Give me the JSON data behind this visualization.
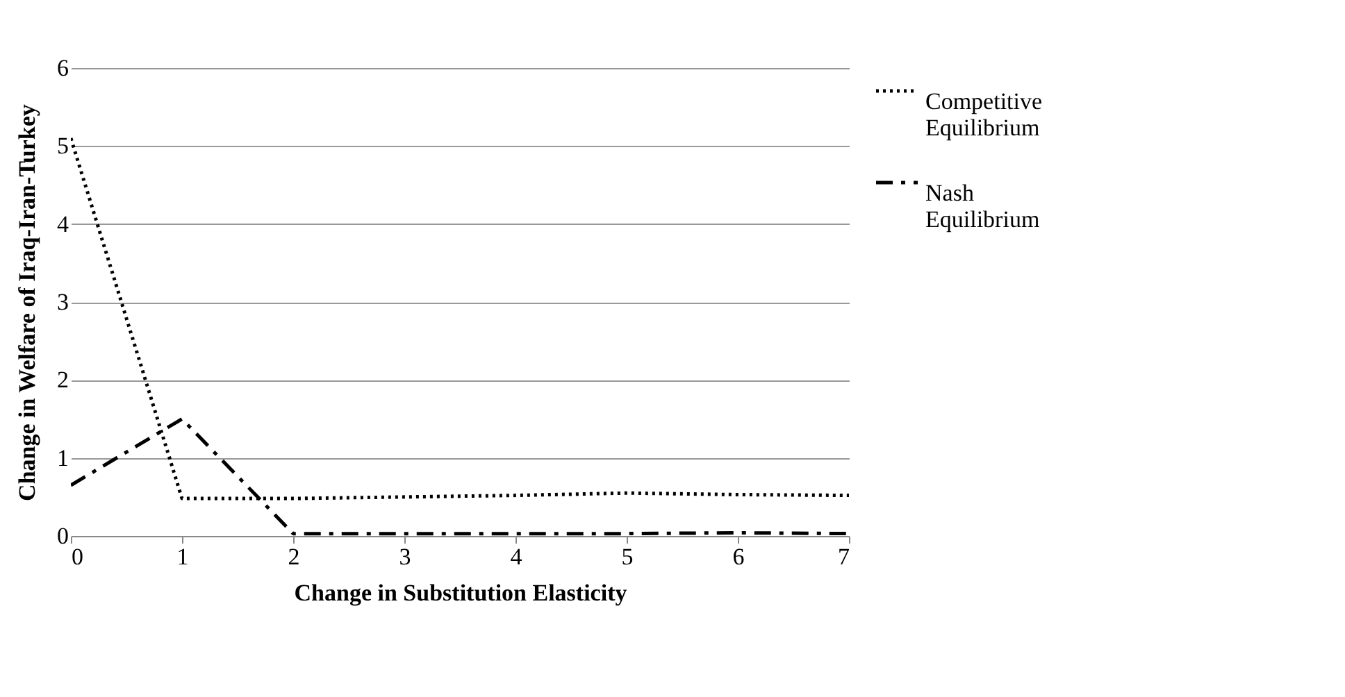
{
  "chart_data": {
    "type": "line",
    "xlabel": "Change in Substitution Elasticity",
    "ylabel": "Change in Welfare of Iraq-Iran-Turkey",
    "x": [
      0,
      1,
      2,
      3,
      4,
      5,
      6,
      7
    ],
    "series": [
      {
        "name": "Competitive Equilibrium",
        "color": "#000000",
        "line_style": "dotted",
        "values": [
          5.1,
          0.48,
          0.48,
          0.5,
          0.52,
          0.55,
          0.53,
          0.52
        ]
      },
      {
        "name": "Nash Equilibrium",
        "color": "#000000",
        "line_style": "dashdot",
        "values": [
          0.65,
          1.5,
          0.03,
          0.03,
          0.03,
          0.03,
          0.04,
          0.03
        ]
      }
    ],
    "xlim": [
      0,
      7
    ],
    "xticks": [
      0,
      1,
      2,
      3,
      4,
      5,
      6,
      7
    ],
    "ylim": [
      0,
      6
    ],
    "yticks": [
      0,
      1,
      2,
      3,
      4,
      5,
      6
    ],
    "grid": "y",
    "legend": "right",
    "marker": "none"
  }
}
